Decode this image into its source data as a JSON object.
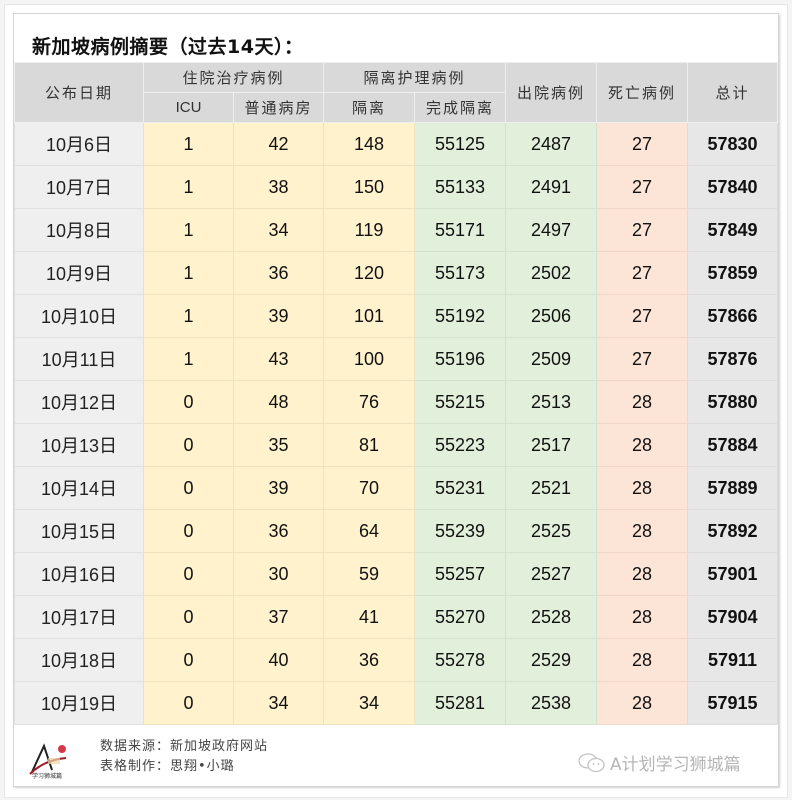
{
  "title": "新加坡病例摘要（过去14天）：",
  "header": {
    "date": "公布日期",
    "hospitalized_group": "住院治疗病例",
    "icu": "ICU",
    "general_ward": "普通病房",
    "isolation_group": "隔离护理病例",
    "isolation": "隔离",
    "completed_isolation": "完成隔离",
    "discharged": "出院病例",
    "deaths": "死亡病例",
    "total": "总计"
  },
  "colors": {
    "header_bg": "#d9d9d9",
    "date_bg": "#efefef",
    "hospital_bg": "#fff2cc",
    "recovered_bg": "#e2efda",
    "death_bg": "#fce4d6",
    "total_bg": "#e7e7e7"
  },
  "rows": [
    {
      "date": "10月6日",
      "icu": "1",
      "ward": "42",
      "isolation": "148",
      "completed": "55125",
      "discharged": "2487",
      "deaths": "27",
      "total": "57830"
    },
    {
      "date": "10月7日",
      "icu": "1",
      "ward": "38",
      "isolation": "150",
      "completed": "55133",
      "discharged": "2491",
      "deaths": "27",
      "total": "57840"
    },
    {
      "date": "10月8日",
      "icu": "1",
      "ward": "34",
      "isolation": "119",
      "completed": "55171",
      "discharged": "2497",
      "deaths": "27",
      "total": "57849"
    },
    {
      "date": "10月9日",
      "icu": "1",
      "ward": "36",
      "isolation": "120",
      "completed": "55173",
      "discharged": "2502",
      "deaths": "27",
      "total": "57859"
    },
    {
      "date": "10月10日",
      "icu": "1",
      "ward": "39",
      "isolation": "101",
      "completed": "55192",
      "discharged": "2506",
      "deaths": "27",
      "total": "57866"
    },
    {
      "date": "10月11日",
      "icu": "1",
      "ward": "43",
      "isolation": "100",
      "completed": "55196",
      "discharged": "2509",
      "deaths": "27",
      "total": "57876"
    },
    {
      "date": "10月12日",
      "icu": "0",
      "ward": "48",
      "isolation": "76",
      "completed": "55215",
      "discharged": "2513",
      "deaths": "28",
      "total": "57880"
    },
    {
      "date": "10月13日",
      "icu": "0",
      "ward": "35",
      "isolation": "81",
      "completed": "55223",
      "discharged": "2517",
      "deaths": "28",
      "total": "57884"
    },
    {
      "date": "10月14日",
      "icu": "0",
      "ward": "39",
      "isolation": "70",
      "completed": "55231",
      "discharged": "2521",
      "deaths": "28",
      "total": "57889"
    },
    {
      "date": "10月15日",
      "icu": "0",
      "ward": "36",
      "isolation": "64",
      "completed": "55239",
      "discharged": "2525",
      "deaths": "28",
      "total": "57892"
    },
    {
      "date": "10月16日",
      "icu": "0",
      "ward": "30",
      "isolation": "59",
      "completed": "55257",
      "discharged": "2527",
      "deaths": "28",
      "total": "57901"
    },
    {
      "date": "10月17日",
      "icu": "0",
      "ward": "37",
      "isolation": "41",
      "completed": "55270",
      "discharged": "2528",
      "deaths": "28",
      "total": "57904"
    },
    {
      "date": "10月18日",
      "icu": "0",
      "ward": "40",
      "isolation": "36",
      "completed": "55278",
      "discharged": "2529",
      "deaths": "28",
      "total": "57911"
    },
    {
      "date": "10月19日",
      "icu": "0",
      "ward": "34",
      "isolation": "34",
      "completed": "55281",
      "discharged": "2538",
      "deaths": "28",
      "total": "57915"
    }
  ],
  "footer": {
    "source": "数据来源：新加坡政府网站",
    "made_by": "表格制作：思翔•小璐",
    "logo_text": "学习狮城篇"
  },
  "watermark": {
    "icon": "wechat-icon",
    "text": "A计划学习狮城篇"
  }
}
